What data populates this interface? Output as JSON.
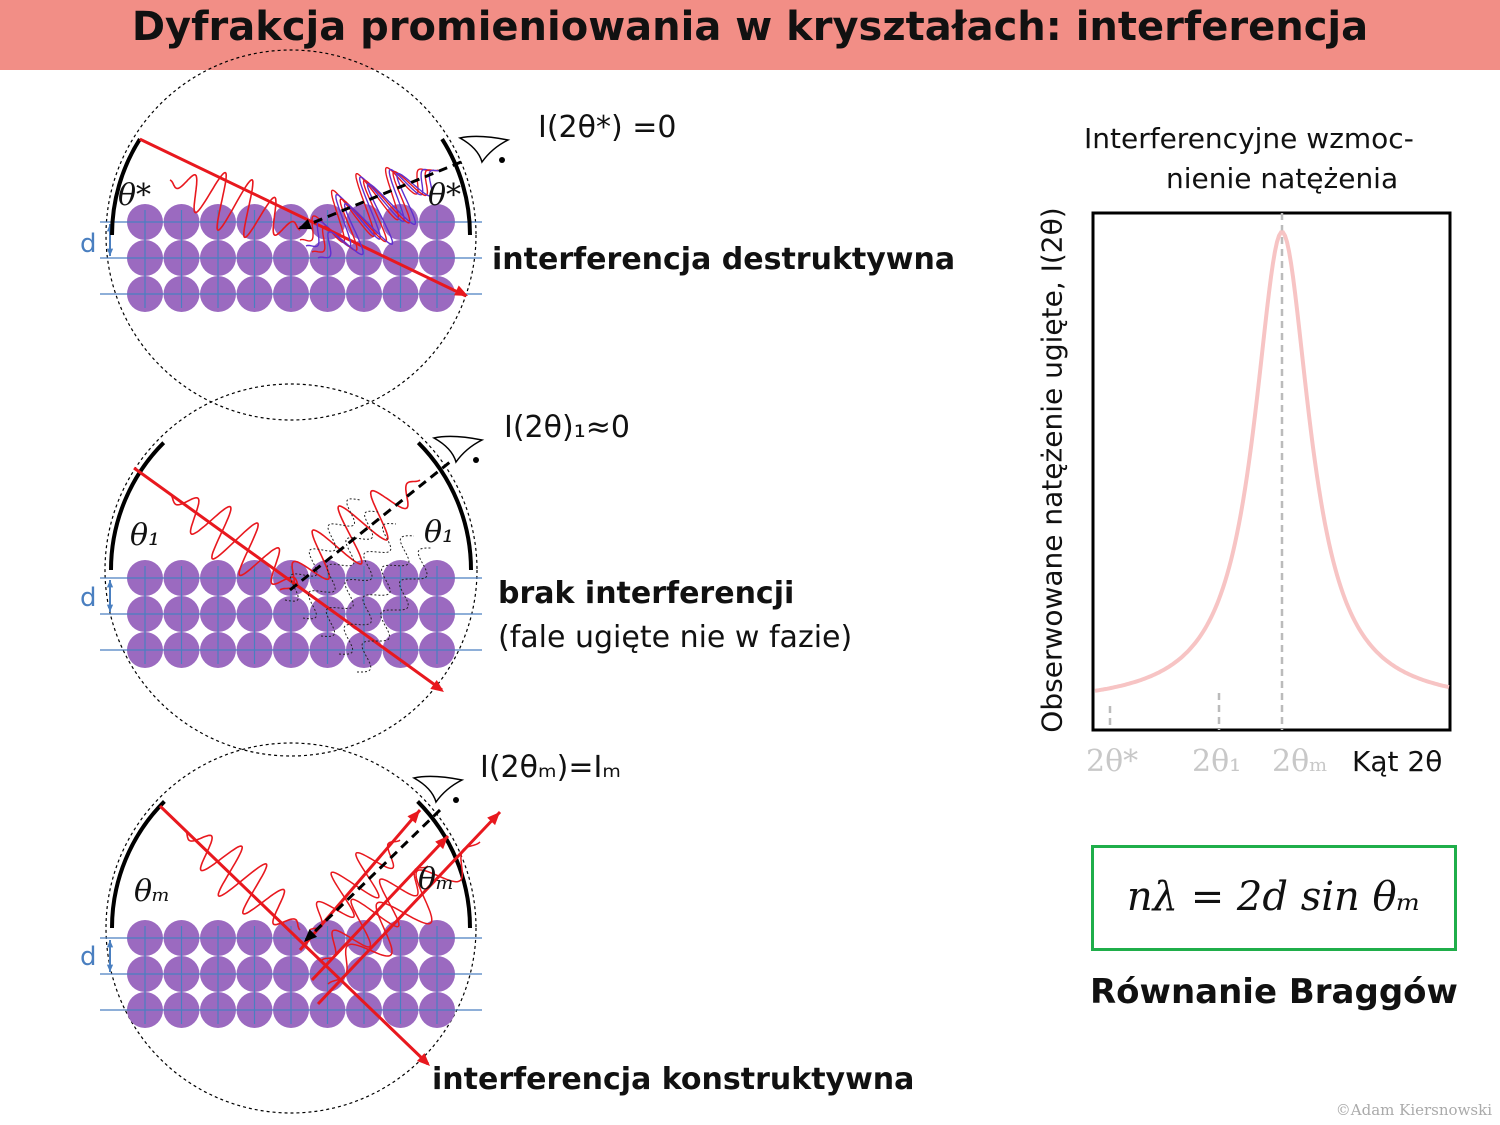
{
  "title": "Dyfrakcja promieniowania w kryształach: interferencja",
  "panels": [
    {
      "label": "interferencja destruktywna",
      "intensity": "I(2θ*) =0",
      "angle_label": "θ*",
      "d_label": "d"
    },
    {
      "label": "brak interferencji",
      "sublabel": "(fale ugięte nie w fazie)",
      "intensity": "I(2θ)₁≈0",
      "angle_label": "θ₁",
      "d_label": "d"
    },
    {
      "label": "interferencja konstruktywna",
      "intensity": "I(2θₘ)=Iₘ",
      "angle_label": "θₘ",
      "d_label": "d"
    }
  ],
  "plot": {
    "title_line1": "Interferencyjne wzmoc-",
    "title_line2": "nienie natężenia",
    "ylabel": "Obserwowane natężenie ugięte, I(2θ)",
    "xlabel": "Kąt 2θ",
    "xticks": [
      "2θ*",
      "2θ₁",
      "2θₘ"
    ]
  },
  "equation": "nλ = 2d sin θₘ",
  "equation_caption": "Równanie Braggów",
  "copyright": "©Adam Kiersnowski",
  "colors": {
    "title_bar": "#f28e86",
    "atom": "#9b6ac0",
    "grid": "#4a7fc0",
    "wave": "#e8181e",
    "peak": "#f7c4c4",
    "box": "#1fae4a"
  }
}
